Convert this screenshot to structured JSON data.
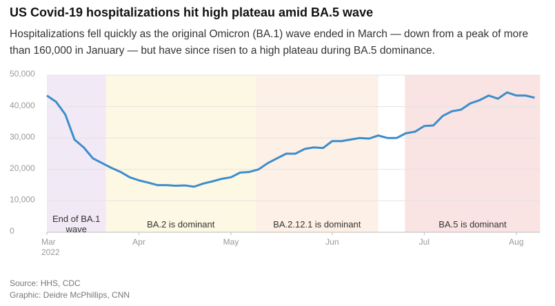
{
  "chart_data": {
    "type": "line",
    "title": "US Covid-19 hospitalizations hit high plateau amid BA.5 wave",
    "subtitle": "Hospitalizations fell quickly as the original Omicron (BA.1) wave ended in March — down from a peak of more than 160,000 in January — but have since risen to a high plateau during BA.5 dominance.",
    "categories": [
      "Mar",
      null,
      null,
      null,
      null,
      null,
      null,
      null,
      null,
      null,
      "Apr",
      null,
      null,
      null,
      null,
      null,
      null,
      null,
      null,
      null,
      "May",
      null,
      null,
      null,
      null,
      null,
      null,
      null,
      null,
      null,
      null,
      "Jun",
      null,
      null,
      null,
      null,
      null,
      null,
      null,
      null,
      null,
      "Jul",
      null,
      null,
      null,
      null,
      null,
      null,
      null,
      null,
      null,
      "Aug",
      null,
      null
    ],
    "x_year_label": "2022",
    "values": [
      43500,
      41500,
      37500,
      29500,
      27000,
      23500,
      22000,
      20500,
      19200,
      17500,
      16500,
      15800,
      15000,
      15000,
      14800,
      14900,
      14500,
      15500,
      16200,
      17000,
      17500,
      19000,
      19200,
      20000,
      22000,
      23500,
      25000,
      25000,
      26500,
      27000,
      26800,
      29000,
      29000,
      29500,
      30000,
      29800,
      30800,
      30000,
      30000,
      31500,
      32000,
      33800,
      34000,
      37000,
      38500,
      39000,
      41000,
      42000,
      43500,
      42500,
      44500,
      43500,
      43500,
      42800
    ],
    "color": "#3a8dcc",
    "ylim": [
      0,
      50000
    ],
    "yticks": [
      0,
      {
        "value": 10000,
        "label": "10,000"
      },
      {
        "value": 20000,
        "label": "20,000"
      },
      {
        "value": 30000,
        "label": "30,000"
      },
      {
        "value": 40000,
        "label": "40,000"
      },
      {
        "value": 50000,
        "label": "50,000"
      }
    ],
    "grid": true,
    "bands": [
      {
        "label": "End of BA.1 wave",
        "start": 0,
        "end": 6.4,
        "color": "#f1e9f5"
      },
      {
        "label": "BA.2 is dominant",
        "start": 6.4,
        "end": 22.7,
        "color": "#fdf8e3"
      },
      {
        "label": "BA.2.12.1 is dominant",
        "start": 22.7,
        "end": 36,
        "color": "#fdf0e6"
      },
      {
        "label": "BA.5 is dominant",
        "start": 38.9,
        "end": 53.6,
        "color": "#fae3e3"
      }
    ],
    "source": "Source: HHS, CDC",
    "credit": "Graphic: Deidre McPhillips, CNN"
  }
}
